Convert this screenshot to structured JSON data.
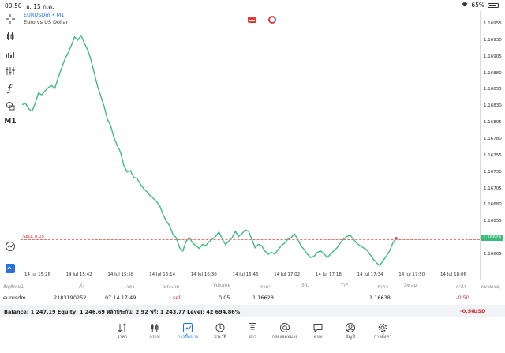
{
  "status_bar": {
    "time": "00:50",
    "date": "อ. 15 ก.ค.",
    "battery": "65%"
  },
  "chart": {
    "symbol": "EURUSDm • M1",
    "description": "Euro vs US Dollar",
    "timeframe": "M1",
    "sell_label": "SELL 0.05",
    "current_price": "1.16629",
    "line_color": "#3dbb7d",
    "sell_line_color": "#e57373"
  },
  "chart_data": {
    "type": "line",
    "x_ticks": [
      "14 Jul 15:26",
      "14 Jul 15:42",
      "14 Jul 15:58",
      "14 Jul 16:14",
      "14 Jul 16:30",
      "14 Jul 16:46",
      "14 Jul 17:02",
      "14 Jul 17:18",
      "14 Jul 17:34",
      "14 Jul 17:50",
      "14 Jul 18:06"
    ],
    "y_ticks": [
      "1.16955",
      "1.16930",
      "1.16905",
      "1.16880",
      "1.16855",
      "1.16830",
      "1.16805",
      "1.16780",
      "1.16755",
      "1.16730",
      "1.16705",
      "1.16680",
      "1.16655",
      "1.16630",
      "1.16605"
    ],
    "ylim": [
      1.1659,
      1.1697
    ],
    "values": [
      1.16832,
      1.16834,
      1.16826,
      1.16822,
      1.16834,
      1.1685,
      1.16847,
      1.16853,
      1.16858,
      1.16861,
      1.16857,
      1.16873,
      1.16887,
      1.16901,
      1.1691,
      1.16922,
      1.16935,
      1.1693,
      1.16937,
      1.16925,
      1.16915,
      1.169,
      1.1688,
      1.1686,
      1.16845,
      1.1683,
      1.1681,
      1.168,
      1.16782,
      1.1677,
      1.1676,
      1.1674,
      1.1673,
      1.16732,
      1.16722,
      1.1672,
      1.16712,
      1.16705,
      1.167,
      1.16694,
      1.1669,
      1.16685,
      1.16678,
      1.16665,
      1.16655,
      1.16648,
      1.16635,
      1.1663,
      1.16615,
      1.1661,
      1.16625,
      1.1663,
      1.16622,
      1.16618,
      1.16614,
      1.1662,
      1.16618,
      1.16624,
      1.16628,
      1.16632,
      1.16639,
      1.16628,
      1.1662,
      1.16625,
      1.1663,
      1.1664,
      1.16632,
      1.16636,
      1.16642,
      1.1664,
      1.16628,
      1.16615,
      1.1662,
      1.16618,
      1.1661,
      1.16605,
      1.16608,
      1.16605,
      1.16612,
      1.16618,
      1.16622,
      1.16628,
      1.1663,
      1.16636,
      1.16628,
      1.16618,
      1.16612,
      1.16605,
      1.166,
      1.16602,
      1.16608,
      1.1661,
      1.16606,
      1.166,
      1.16605,
      1.1661,
      1.16615,
      1.16622,
      1.16628,
      1.16632,
      1.16634,
      1.16628,
      1.16622,
      1.16618,
      1.16615,
      1.16612,
      1.16605,
      1.16598,
      1.16592,
      1.16588,
      1.16595,
      1.16602,
      1.1661,
      1.16622,
      1.16629
    ],
    "sell_level": 1.16628
  },
  "toolbar": {
    "timeframe_label": "M1"
  },
  "orders": {
    "headers": [
      "สัญลักษณ์",
      "ตั๋ว",
      "เวลา",
      "ประเภท",
      "Volume",
      "ราคา",
      "S/L",
      "T/P",
      "ราคา",
      "Swap",
      "กำไร",
      "หมายเหตุ"
    ],
    "row": {
      "symbol": "eurusdm",
      "ticket": "2183190252",
      "time": "07.14 17:49",
      "type": "sell",
      "volume": "0.05",
      "open_price": "1.16628",
      "current_price": "1.16638",
      "profit": "-0.50"
    }
  },
  "balance": {
    "text": "Balance: 1 247.19 Equity: 1 246.69 หลักประกัน: 2.92 ฟรี: 1 243.77 Level: 42 694.86%",
    "profit": "-0.50",
    "currency": "USD"
  },
  "nav": {
    "items": [
      {
        "label": "ราคา",
        "icon": "quotes-icon"
      },
      {
        "label": "กราฟ",
        "icon": "chart-icon"
      },
      {
        "label": "การซื้อขาย",
        "icon": "trade-icon"
      },
      {
        "label": "ประวัติ",
        "icon": "history-icon"
      },
      {
        "label": "ข่าว",
        "icon": "news-icon"
      },
      {
        "label": "กล่องจดหมาย",
        "icon": "mailbox-icon"
      },
      {
        "label": "แชท",
        "icon": "chat-icon"
      },
      {
        "label": "บัญชี",
        "icon": "account-icon"
      },
      {
        "label": "การตั้งค่า",
        "icon": "settings-icon"
      }
    ],
    "active_index": 2,
    "active_color": "#1a73e8"
  }
}
